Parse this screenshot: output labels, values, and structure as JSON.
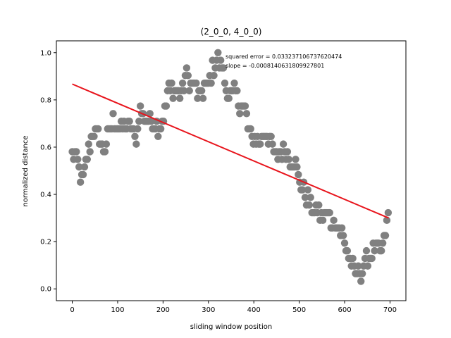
{
  "chart_data": {
    "type": "scatter",
    "title": "(2_0_0, 4_0_0)",
    "xlabel": "sliding window position",
    "ylabel": "normalized distance",
    "xlim": [
      -35,
      735
    ],
    "ylim": [
      -0.05,
      1.05
    ],
    "xticks": [
      0,
      100,
      200,
      300,
      400,
      500,
      600,
      700
    ],
    "yticks": [
      0.0,
      0.2,
      0.4,
      0.6,
      0.8,
      1.0
    ],
    "xtick_labels": [
      "0",
      "100",
      "200",
      "300",
      "400",
      "500",
      "600",
      "700"
    ],
    "ytick_labels": [
      "0.0",
      "0.2",
      "0.4",
      "0.6",
      "0.8",
      "1.0"
    ],
    "grid": false,
    "annotations": [
      "squared error = 0.033237106737620474",
      "slope = -0.0008140631809927801"
    ],
    "point_color": "#808080",
    "fit_color": "#e8141c",
    "fit_line": {
      "x": [
        0,
        697
      ],
      "y": [
        0.867,
        0.3
      ]
    },
    "anchors": [
      [
        0,
        0.56
      ],
      [
        5,
        0.57
      ],
      [
        10,
        0.56
      ],
      [
        15,
        0.52
      ],
      [
        20,
        0.44
      ],
      [
        25,
        0.49
      ],
      [
        30,
        0.53
      ],
      [
        35,
        0.57
      ],
      [
        40,
        0.63
      ],
      [
        45,
        0.66
      ],
      [
        50,
        0.67
      ],
      [
        60,
        0.64
      ],
      [
        70,
        0.59
      ],
      [
        80,
        0.66
      ],
      [
        90,
        0.71
      ],
      [
        100,
        0.68
      ],
      [
        110,
        0.67
      ],
      [
        120,
        0.69
      ],
      [
        130,
        0.7
      ],
      [
        140,
        0.63
      ],
      [
        150,
        0.77
      ],
      [
        160,
        0.72
      ],
      [
        170,
        0.72
      ],
      [
        180,
        0.69
      ],
      [
        190,
        0.69
      ],
      [
        200,
        0.72
      ],
      [
        210,
        0.82
      ],
      [
        220,
        0.86
      ],
      [
        230,
        0.84
      ],
      [
        240,
        0.83
      ],
      [
        250,
        0.9
      ],
      [
        260,
        0.87
      ],
      [
        270,
        0.86
      ],
      [
        280,
        0.81
      ],
      [
        290,
        0.85
      ],
      [
        300,
        0.86
      ],
      [
        310,
        0.93
      ],
      [
        320,
        0.97
      ],
      [
        330,
        0.94
      ],
      [
        340,
        0.84
      ],
      [
        350,
        0.8
      ],
      [
        360,
        0.83
      ],
      [
        370,
        0.78
      ],
      [
        380,
        0.77
      ],
      [
        390,
        0.66
      ],
      [
        400,
        0.63
      ],
      [
        410,
        0.62
      ],
      [
        420,
        0.64
      ],
      [
        430,
        0.66
      ],
      [
        440,
        0.6
      ],
      [
        450,
        0.55
      ],
      [
        460,
        0.58
      ],
      [
        470,
        0.58
      ],
      [
        480,
        0.55
      ],
      [
        490,
        0.53
      ],
      [
        500,
        0.47
      ],
      [
        510,
        0.41
      ],
      [
        520,
        0.38
      ],
      [
        530,
        0.33
      ],
      [
        540,
        0.33
      ],
      [
        550,
        0.31
      ],
      [
        560,
        0.32
      ],
      [
        570,
        0.29
      ],
      [
        580,
        0.28
      ],
      [
        590,
        0.25
      ],
      [
        600,
        0.2
      ],
      [
        610,
        0.14
      ],
      [
        620,
        0.08
      ],
      [
        630,
        0.06
      ],
      [
        640,
        0.09
      ],
      [
        650,
        0.13
      ],
      [
        660,
        0.15
      ],
      [
        670,
        0.17
      ],
      [
        680,
        0.15
      ],
      [
        690,
        0.23
      ],
      [
        697,
        0.34
      ]
    ]
  }
}
